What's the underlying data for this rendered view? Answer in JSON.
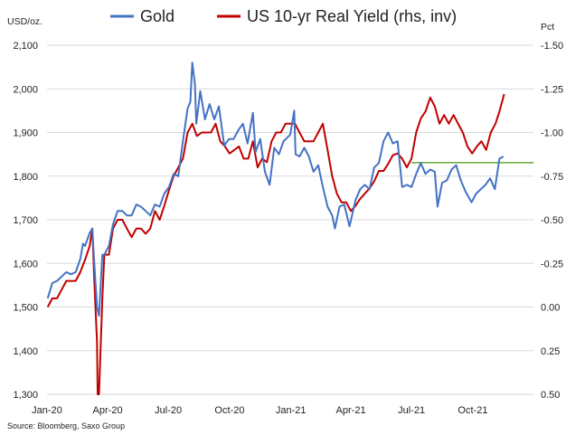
{
  "chart_data": {
    "type": "line",
    "title": "",
    "legend": {
      "placement": "top"
    },
    "grid": true,
    "left_axis": {
      "unit_label": "USD/oz.",
      "ylim": [
        1300,
        2100
      ],
      "ticks": [
        1300,
        1400,
        1500,
        1600,
        1700,
        1800,
        1900,
        2000,
        2100
      ],
      "tick_labels": [
        "1,300",
        "1,400",
        "1,500",
        "1,600",
        "1,700",
        "1,800",
        "1,900",
        "2,000",
        "2,100"
      ]
    },
    "right_axis": {
      "unit_label": "Pct",
      "inverted": true,
      "ylim": [
        0.5,
        -1.5
      ],
      "ticks": [
        -1.5,
        -1.25,
        -1.0,
        -0.75,
        -0.5,
        -0.25,
        0.0,
        0.25,
        0.5
      ],
      "tick_labels": [
        "-1.50",
        "-1.25",
        "-1.00",
        "-0.75",
        "-0.50",
        "-0.25",
        "0.00",
        "0.25",
        "0.50"
      ]
    },
    "x_axis": {
      "ticks": [
        "2020-01-01",
        "2020-04-01",
        "2020-07-01",
        "2020-10-01",
        "2021-01-01",
        "2021-04-01",
        "2021-07-01",
        "2021-10-01"
      ],
      "tick_labels": [
        "Jan-20",
        "Apr-20",
        "Jul-20",
        "Oct-20",
        "Jan-21",
        "Apr-21",
        "Jul-21",
        "Oct-21"
      ],
      "range": [
        "2020-01-01",
        "2021-12-31"
      ]
    },
    "series": [
      {
        "name": "Gold",
        "axis": "left",
        "color": "#4472c4",
        "x": [
          "2020-01-02",
          "2020-01-09",
          "2020-01-16",
          "2020-01-23",
          "2020-01-30",
          "2020-02-06",
          "2020-02-13",
          "2020-02-20",
          "2020-02-24",
          "2020-02-27",
          "2020-03-05",
          "2020-03-09",
          "2020-03-12",
          "2020-03-16",
          "2020-03-19",
          "2020-03-24",
          "2020-03-27",
          "2020-04-03",
          "2020-04-09",
          "2020-04-16",
          "2020-04-23",
          "2020-04-30",
          "2020-05-07",
          "2020-05-14",
          "2020-05-21",
          "2020-05-28",
          "2020-06-04",
          "2020-06-11",
          "2020-06-18",
          "2020-06-25",
          "2020-07-02",
          "2020-07-09",
          "2020-07-16",
          "2020-07-23",
          "2020-07-30",
          "2020-08-03",
          "2020-08-06",
          "2020-08-10",
          "2020-08-12",
          "2020-08-18",
          "2020-08-25",
          "2020-09-01",
          "2020-09-08",
          "2020-09-15",
          "2020-09-23",
          "2020-09-30",
          "2020-10-07",
          "2020-10-14",
          "2020-10-21",
          "2020-10-28",
          "2020-11-05",
          "2020-11-09",
          "2020-11-16",
          "2020-11-23",
          "2020-11-30",
          "2020-12-07",
          "2020-12-14",
          "2020-12-21",
          "2020-12-31",
          "2021-01-06",
          "2021-01-08",
          "2021-01-14",
          "2021-01-21",
          "2021-01-28",
          "2021-02-04",
          "2021-02-11",
          "2021-02-18",
          "2021-02-25",
          "2021-03-04",
          "2021-03-08",
          "2021-03-15",
          "2021-03-22",
          "2021-03-30",
          "2021-04-08",
          "2021-04-15",
          "2021-04-22",
          "2021-04-29",
          "2021-05-06",
          "2021-05-13",
          "2021-05-20",
          "2021-05-27",
          "2021-06-03",
          "2021-06-10",
          "2021-06-17",
          "2021-06-24",
          "2021-07-01",
          "2021-07-08",
          "2021-07-15",
          "2021-07-22",
          "2021-07-29",
          "2021-08-05",
          "2021-08-09",
          "2021-08-16",
          "2021-08-23",
          "2021-08-30",
          "2021-09-06",
          "2021-09-13",
          "2021-09-20",
          "2021-09-29",
          "2021-10-06",
          "2021-10-13",
          "2021-10-20",
          "2021-10-27",
          "2021-11-03",
          "2021-11-10",
          "2021-11-16"
        ],
        "values": [
          1520,
          1555,
          1560,
          1570,
          1580,
          1575,
          1580,
          1610,
          1645,
          1640,
          1670,
          1680,
          1600,
          1500,
          1480,
          1620,
          1620,
          1640,
          1690,
          1720,
          1720,
          1710,
          1710,
          1735,
          1730,
          1720,
          1710,
          1735,
          1730,
          1760,
          1775,
          1805,
          1800,
          1880,
          1955,
          1970,
          2060,
          2010,
          1920,
          1995,
          1930,
          1965,
          1930,
          1960,
          1870,
          1885,
          1885,
          1905,
          1920,
          1875,
          1945,
          1855,
          1885,
          1810,
          1780,
          1865,
          1850,
          1880,
          1895,
          1950,
          1850,
          1845,
          1865,
          1845,
          1810,
          1825,
          1775,
          1730,
          1710,
          1680,
          1730,
          1735,
          1685,
          1745,
          1770,
          1780,
          1770,
          1820,
          1830,
          1880,
          1900,
          1875,
          1880,
          1775,
          1780,
          1775,
          1805,
          1830,
          1805,
          1815,
          1810,
          1730,
          1785,
          1790,
          1815,
          1825,
          1790,
          1765,
          1740,
          1760,
          1770,
          1780,
          1795,
          1770,
          1840,
          1845
        ]
      },
      {
        "name": "US 10-yr Real Yield (rhs, inv)",
        "axis": "right",
        "color": "#c00000",
        "x": [
          "2020-01-02",
          "2020-01-09",
          "2020-01-16",
          "2020-01-23",
          "2020-01-30",
          "2020-02-06",
          "2020-02-13",
          "2020-02-20",
          "2020-02-27",
          "2020-03-05",
          "2020-03-09",
          "2020-03-12",
          "2020-03-16",
          "2020-03-17",
          "2020-03-19",
          "2020-03-24",
          "2020-03-27",
          "2020-04-03",
          "2020-04-09",
          "2020-04-16",
          "2020-04-23",
          "2020-04-30",
          "2020-05-07",
          "2020-05-14",
          "2020-05-21",
          "2020-05-28",
          "2020-06-04",
          "2020-06-11",
          "2020-06-18",
          "2020-06-25",
          "2020-07-02",
          "2020-07-09",
          "2020-07-16",
          "2020-07-23",
          "2020-07-30",
          "2020-08-06",
          "2020-08-13",
          "2020-08-20",
          "2020-08-27",
          "2020-09-03",
          "2020-09-10",
          "2020-09-17",
          "2020-09-24",
          "2020-10-01",
          "2020-10-08",
          "2020-10-15",
          "2020-10-22",
          "2020-10-29",
          "2020-11-05",
          "2020-11-12",
          "2020-11-19",
          "2020-11-26",
          "2020-12-03",
          "2020-12-10",
          "2020-12-17",
          "2020-12-24",
          "2020-12-31",
          "2021-01-07",
          "2021-01-14",
          "2021-01-21",
          "2021-01-28",
          "2021-02-04",
          "2021-02-11",
          "2021-02-18",
          "2021-02-25",
          "2021-03-04",
          "2021-03-11",
          "2021-03-18",
          "2021-03-25",
          "2021-04-01",
          "2021-04-08",
          "2021-04-15",
          "2021-04-22",
          "2021-04-29",
          "2021-05-06",
          "2021-05-13",
          "2021-05-20",
          "2021-05-27",
          "2021-06-03",
          "2021-06-10",
          "2021-06-17",
          "2021-06-24",
          "2021-07-01",
          "2021-07-08",
          "2021-07-15",
          "2021-07-22",
          "2021-07-29",
          "2021-08-05",
          "2021-08-12",
          "2021-08-19",
          "2021-08-26",
          "2021-09-02",
          "2021-09-09",
          "2021-09-16",
          "2021-09-23",
          "2021-09-30",
          "2021-10-07",
          "2021-10-14",
          "2021-10-21",
          "2021-10-28",
          "2021-11-04",
          "2021-11-10",
          "2021-11-17"
        ],
        "values": [
          0.0,
          -0.05,
          -0.05,
          -0.1,
          -0.15,
          -0.15,
          -0.15,
          -0.2,
          -0.27,
          -0.35,
          -0.45,
          -0.15,
          0.2,
          0.5,
          0.55,
          -0.05,
          -0.3,
          -0.3,
          -0.45,
          -0.5,
          -0.5,
          -0.45,
          -0.4,
          -0.45,
          -0.45,
          -0.42,
          -0.45,
          -0.55,
          -0.5,
          -0.58,
          -0.67,
          -0.75,
          -0.8,
          -0.85,
          -1.0,
          -1.05,
          -0.98,
          -1.0,
          -1.0,
          -1.0,
          -1.05,
          -0.95,
          -0.92,
          -0.88,
          -0.9,
          -0.92,
          -0.85,
          -0.85,
          -0.95,
          -0.8,
          -0.85,
          -0.83,
          -0.95,
          -1.0,
          -1.0,
          -1.05,
          -1.05,
          -1.05,
          -1.0,
          -0.95,
          -0.95,
          -0.95,
          -1.0,
          -1.05,
          -0.9,
          -0.75,
          -0.65,
          -0.6,
          -0.6,
          -0.55,
          -0.58,
          -0.62,
          -0.65,
          -0.68,
          -0.72,
          -0.78,
          -0.78,
          -0.82,
          -0.87,
          -0.88,
          -0.85,
          -0.8,
          -0.85,
          -1.0,
          -1.08,
          -1.12,
          -1.2,
          -1.15,
          -1.05,
          -1.1,
          -1.05,
          -1.1,
          -1.05,
          -1.0,
          -0.92,
          -0.88,
          -0.92,
          -0.95,
          -0.9,
          -1.0,
          -1.05,
          -1.12,
          -1.22
        ],
        "x_partial_note": ""
      },
      {
        "name": "",
        "axis": "left",
        "color": "#70ad47",
        "x": [
          "2021-07-01",
          "2021-12-31"
        ],
        "values": [
          1831,
          1831
        ]
      }
    ],
    "source": "Source: Bloomberg, Saxo Group"
  }
}
